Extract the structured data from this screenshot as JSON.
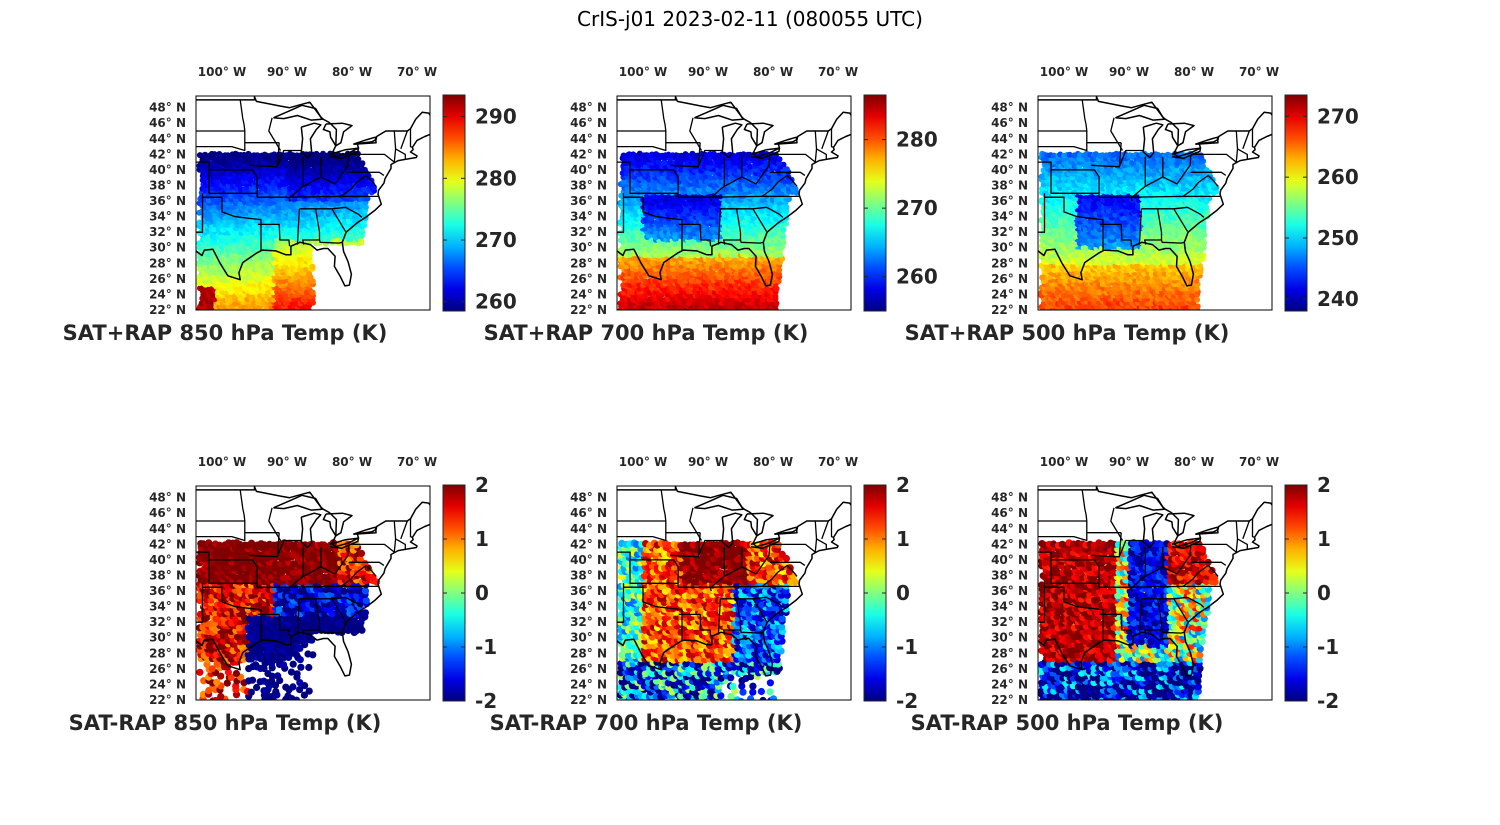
{
  "figure_title": "CrIS-j01 2023-02-11 (080055 UTC)",
  "lon_ticks": [
    "100° W",
    "90° W",
    "80° W",
    "70° W"
  ],
  "lat_ticks": [
    "48° N",
    "46° N",
    "44° N",
    "42° N",
    "40° N",
    "38° N",
    "36° N",
    "34° N",
    "32° N",
    "30° N",
    "28° N",
    "26° N",
    "24° N",
    "22° N"
  ],
  "colormap": "jet",
  "chart_data": [
    {
      "type": "map",
      "title": "SAT+RAP 850 hPa Temp (K)",
      "clim": [
        258.5,
        293.5
      ],
      "colorbar_ticks": [
        290,
        280,
        270,
        260
      ],
      "lon_range": [
        -104,
        -68
      ],
      "lat_range": [
        22,
        49.5
      ],
      "pattern": "absolute_850"
    },
    {
      "type": "map",
      "title": "SAT+RAP 700 hPa Temp (K)",
      "clim": [
        255,
        286.5
      ],
      "colorbar_ticks": [
        280,
        270,
        260
      ],
      "lon_range": [
        -104,
        -68
      ],
      "lat_range": [
        22,
        49.5
      ],
      "pattern": "absolute_700"
    },
    {
      "type": "map",
      "title": "SAT+RAP 500 hPa Temp (K)",
      "clim": [
        238,
        273.5
      ],
      "colorbar_ticks": [
        270,
        260,
        250,
        240
      ],
      "lon_range": [
        -104,
        -68
      ],
      "lat_range": [
        22,
        49.5
      ],
      "pattern": "absolute_500"
    },
    {
      "type": "map",
      "title": "SAT-RAP 850 hPa Temp (K)",
      "clim": [
        -2,
        2
      ],
      "colorbar_ticks": [
        2,
        1,
        0,
        -1,
        -2
      ],
      "lon_range": [
        -104,
        -68
      ],
      "lat_range": [
        22,
        49.5
      ],
      "pattern": "diff_850"
    },
    {
      "type": "map",
      "title": "SAT-RAP 700 hPa Temp (K)",
      "clim": [
        -2,
        2
      ],
      "colorbar_ticks": [
        2,
        1,
        0,
        -1,
        -2
      ],
      "lon_range": [
        -104,
        -68
      ],
      "lat_range": [
        22,
        49.5
      ],
      "pattern": "diff_700"
    },
    {
      "type": "map",
      "title": "SAT-RAP 500 hPa Temp (K)",
      "clim": [
        -2,
        2
      ],
      "colorbar_ticks": [
        2,
        1,
        0,
        -1,
        -2
      ],
      "lon_range": [
        -104,
        -68
      ],
      "lat_range": [
        22,
        49.5
      ],
      "pattern": "diff_500"
    }
  ]
}
